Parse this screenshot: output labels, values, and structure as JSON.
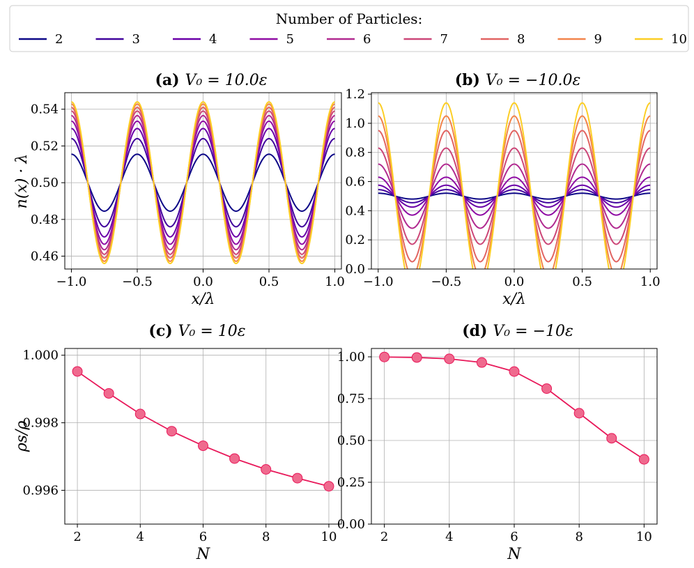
{
  "legend": {
    "title": "Number of Particles:",
    "entries": [
      "2",
      "3",
      "4",
      "5",
      "6",
      "7",
      "8",
      "9",
      "10"
    ],
    "colors": [
      "#0d0887",
      "#41049d",
      "#6a00a8",
      "#8f0da4",
      "#b12a90",
      "#cc4778",
      "#e16462",
      "#f2844b",
      "#fcce25"
    ]
  },
  "chart_data": [
    {
      "id": "a",
      "type": "line",
      "title_bold": "(a)",
      "title_math": "V₀ = 10.0ε",
      "xlabel": "x/λ",
      "ylabel": "n(x) · λ",
      "xlim": [
        -1.05,
        1.05
      ],
      "ylim": [
        0.453,
        0.549
      ],
      "xticks": [
        -1.0,
        -0.5,
        0.0,
        0.5,
        1.0
      ],
      "xtick_labels": [
        "−1.0",
        "−0.5",
        "0.0",
        "0.5",
        "1.0"
      ],
      "yticks": [
        0.46,
        0.48,
        0.5,
        0.52,
        0.54
      ],
      "ytick_labels": [
        "0.46",
        "0.48",
        "0.50",
        "0.52",
        "0.54"
      ],
      "grid": true,
      "x_range": [
        -1.0,
        1.0
      ],
      "series": [
        {
          "name": "2",
          "mean": 0.5,
          "amplitude": 0.0155
        },
        {
          "name": "3",
          "mean": 0.5,
          "amplitude": 0.024
        },
        {
          "name": "4",
          "mean": 0.5,
          "amplitude": 0.0295
        },
        {
          "name": "5",
          "mean": 0.5,
          "amplitude": 0.0335
        },
        {
          "name": "6",
          "mean": 0.5,
          "amplitude": 0.0365
        },
        {
          "name": "7",
          "mean": 0.5,
          "amplitude": 0.039
        },
        {
          "name": "8",
          "mean": 0.5,
          "amplitude": 0.041
        },
        {
          "name": "9",
          "mean": 0.5,
          "amplitude": 0.0428
        },
        {
          "name": "10",
          "mean": 0.5,
          "amplitude": 0.044
        }
      ]
    },
    {
      "id": "b",
      "type": "line",
      "title_bold": "(b)",
      "title_math": "V₀ = −10.0ε",
      "xlabel": "x/λ",
      "ylabel": "",
      "xlim": [
        -1.05,
        1.05
      ],
      "ylim": [
        0.0,
        1.21
      ],
      "xticks": [
        -1.0,
        -0.5,
        0.0,
        0.5,
        1.0
      ],
      "xtick_labels": [
        "−1.0",
        "−0.5",
        "0.0",
        "0.5",
        "1.0"
      ],
      "yticks": [
        0.0,
        0.2,
        0.4,
        0.6,
        0.8,
        1.0,
        1.2
      ],
      "ytick_labels": [
        "0.0",
        "0.2",
        "0.4",
        "0.6",
        "0.8",
        "1.0",
        "1.2"
      ],
      "grid": true,
      "x_range": [
        -1.0,
        1.0
      ],
      "series": [
        {
          "name": "2",
          "mean": 0.5,
          "amplitude": 0.02
        },
        {
          "name": "3",
          "mean": 0.5,
          "amplitude": 0.045
        },
        {
          "name": "4",
          "mean": 0.5,
          "amplitude": 0.075
        },
        {
          "name": "5",
          "mean": 0.5,
          "amplitude": 0.13
        },
        {
          "name": "6",
          "mean": 0.5,
          "amplitude": 0.22
        },
        {
          "name": "7",
          "mean": 0.5,
          "amplitude": 0.33
        },
        {
          "name": "8",
          "mean": 0.5,
          "amplitude": 0.45
        },
        {
          "name": "9",
          "mean": 0.5,
          "amplitude": 0.55
        },
        {
          "name": "10",
          "mean": 0.5,
          "amplitude": 0.64
        }
      ]
    },
    {
      "id": "c",
      "type": "line",
      "title_bold": "(c)",
      "title_math": "V₀ = 10ε",
      "xlabel": "N",
      "ylabel": "ρs/ρ",
      "xlim": [
        1.6,
        10.4
      ],
      "ylim": [
        0.995,
        1.0002
      ],
      "xticks": [
        2,
        4,
        6,
        8,
        10
      ],
      "xtick_labels": [
        "2",
        "4",
        "6",
        "8",
        "10"
      ],
      "yticks": [
        0.996,
        0.998,
        1.0
      ],
      "ytick_labels": [
        "0.996",
        "0.998",
        "1.000"
      ],
      "grid": true,
      "x": [
        2,
        3,
        4,
        5,
        6,
        7,
        8,
        9,
        10
      ],
      "values": [
        0.99952,
        0.99887,
        0.99826,
        0.99775,
        0.99732,
        0.99694,
        0.99662,
        0.99636,
        0.99612
      ],
      "line_color": "#e8195a",
      "marker_color": "#ef6a8e"
    },
    {
      "id": "d",
      "type": "line",
      "title_bold": "(d)",
      "title_math": "V₀ = −10ε",
      "xlabel": "N",
      "ylabel": "",
      "xlim": [
        1.6,
        10.4
      ],
      "ylim": [
        0.0,
        1.05
      ],
      "xticks": [
        2,
        4,
        6,
        8,
        10
      ],
      "xtick_labels": [
        "2",
        "4",
        "6",
        "8",
        "10"
      ],
      "yticks": [
        0.0,
        0.25,
        0.5,
        0.75,
        1.0
      ],
      "ytick_labels": [
        "0.00",
        "0.25",
        "0.50",
        "0.75",
        "1.00"
      ],
      "grid": true,
      "x": [
        2,
        3,
        4,
        5,
        6,
        7,
        8,
        9,
        10
      ],
      "values": [
        0.999,
        0.996,
        0.988,
        0.966,
        0.912,
        0.81,
        0.663,
        0.513,
        0.387
      ],
      "line_color": "#e8195a",
      "marker_color": "#ef6a8e"
    }
  ]
}
